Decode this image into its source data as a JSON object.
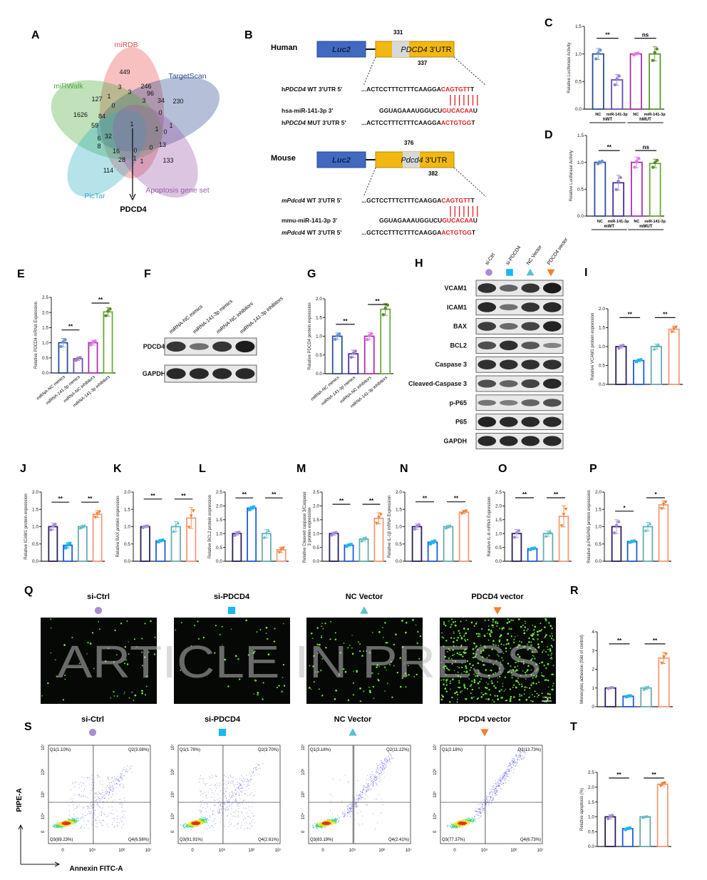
{
  "watermark": "ARTICLE IN PRESS",
  "panel_letters": [
    "A",
    "B",
    "C",
    "D",
    "E",
    "F",
    "G",
    "H",
    "I",
    "J",
    "K",
    "L",
    "M",
    "N",
    "O",
    "P",
    "Q",
    "R",
    "S",
    "T"
  ],
  "venn": {
    "sets": [
      {
        "name": "miRDB",
        "color": "#e84d4d"
      },
      {
        "name": "TargetScan",
        "color": "#2a4a8e"
      },
      {
        "name": "miRWalk",
        "color": "#4aaa3a"
      },
      {
        "name": "PicTar",
        "color": "#2fb0c4"
      },
      {
        "name": "Apoptosis gene set",
        "color": "#9a5aa8"
      }
    ],
    "counts": [
      "449",
      "3",
      "3",
      "246",
      "96",
      "127",
      "1",
      "0",
      "3",
      "34",
      "230",
      "1626",
      "84",
      "0",
      "59",
      "1",
      "1",
      "1",
      "0",
      "6",
      "32",
      "8",
      "13",
      "16",
      "0",
      "0",
      "28",
      "1",
      "1",
      "133",
      "114"
    ],
    "result": "PDCD4"
  },
  "construct": {
    "luc": "Luc2",
    "human": {
      "species": "Human",
      "utr_italic": "PDCD4",
      "utr_rest": " 3'UTR",
      "pos_top": "331",
      "pos_bottom": "337",
      "rows": [
        {
          "pre": "h",
          "it": "PDCD4",
          "post": " WT 3'UTR 5'",
          "seq": "...ACTCCTTTCTTTCAAGGA",
          "red": "CAGTGTT",
          "end": "T"
        },
        {
          "pre": "hsa-miR-141-3p 3'",
          "it": "",
          "post": "",
          "seq": "GGUAGAAAUGGUCU",
          "red": "GUCACAA",
          "end": "U"
        },
        {
          "pre": "h",
          "it": "PDCD4",
          "post": " MUT 3'UTR 5'",
          "seq": "...ACTCCTTTCTTTCAAGGA",
          "red": "ACTGTGG",
          "end": "T"
        }
      ]
    },
    "mouse": {
      "species": "Mouse",
      "utr_italic": "Pdcd4",
      "utr_rest": " 3'UTR",
      "pos_top": "376",
      "pos_bottom": "382",
      "rows": [
        {
          "pre": "",
          "it": "mPdcd4",
          "post": " WT 3'UTR 5'",
          "seq": "...GCTCCTTTCTTTCAAGGA",
          "red": "CAGTGTT",
          "end": "T"
        },
        {
          "pre": "mmu-miR-141-3p 3'",
          "it": "",
          "post": "",
          "seq": "GGUAGAAAUGGUCU",
          "red": "GUCACAA",
          "end": "U"
        },
        {
          "pre": "",
          "it": "mPdcd4",
          "post": " WT 3'UTR 5'",
          "seq": "...GCTCCTTTCTTTCAAGGA",
          "red": "ACTGTGG",
          "end": "T"
        }
      ]
    }
  },
  "blot_f": {
    "lanes": [
      "miRNA-NC mimics",
      "miRNA-141-3p mimics",
      "miRNA-NC inhibitors",
      "miRNA-141-3p inhibitors"
    ],
    "rows": [
      {
        "name": "PDCD4",
        "intensity": [
          0.8,
          0.35,
          0.8,
          1.0
        ]
      },
      {
        "name": "GAPDH",
        "intensity": [
          0.9,
          0.9,
          0.9,
          0.9
        ]
      }
    ]
  },
  "groups": [
    {
      "name": "si-Ctrl",
      "symbol": "circle",
      "color": "#a98bd6"
    },
    {
      "name": "si-PDCD4",
      "symbol": "square",
      "color": "#1ab8f0"
    },
    {
      "name": "NC Vector",
      "symbol": "triangle",
      "color": "#5cc0c8"
    },
    {
      "name": "PDCD4 vector",
      "symbol": "down-triangle",
      "color": "#f08030"
    }
  ],
  "blot_h": {
    "rows": [
      {
        "name": "VCAM1",
        "intensity": [
          0.85,
          0.45,
          0.8,
          1.0
        ]
      },
      {
        "name": "ICAM1",
        "intensity": [
          0.9,
          0.35,
          0.8,
          0.9
        ]
      },
      {
        "name": "BAX",
        "intensity": [
          0.75,
          0.4,
          0.7,
          0.95
        ]
      },
      {
        "name": "BCL2",
        "intensity": [
          0.6,
          0.85,
          0.55,
          0.2
        ]
      },
      {
        "name": "Caspase 3",
        "intensity": [
          0.85,
          0.85,
          0.85,
          0.85
        ]
      },
      {
        "name": "Cleaved-Caspase 3",
        "intensity": [
          0.6,
          0.45,
          0.7,
          0.9
        ]
      },
      {
        "name": "p-P65",
        "intensity": [
          0.3,
          0.25,
          0.45,
          0.6
        ]
      },
      {
        "name": "P65",
        "intensity": [
          0.95,
          0.9,
          0.9,
          0.9
        ]
      },
      {
        "name": "GAPDH",
        "intensity": [
          0.9,
          0.9,
          0.9,
          0.9
        ]
      }
    ]
  },
  "chart_data": [
    {
      "id": "C",
      "type": "bar",
      "ylabel": "Relative Luciferase Activity",
      "ylim": [
        0,
        1.5
      ],
      "yticks": [
        "0.0",
        "0.5",
        "1.0",
        "1.5"
      ],
      "categories": [
        "NC",
        "miR-141-3p",
        "NC",
        "miR-141-3p"
      ],
      "groups": [
        "hWT",
        "hMUT"
      ],
      "values": [
        1.0,
        0.53,
        1.0,
        1.0
      ],
      "errors": [
        0.1,
        0.1,
        0.02,
        0.13
      ],
      "sig": [
        "**",
        "ns"
      ],
      "colors": [
        "#2a4f9a",
        "#6a4fb0",
        "#b02fb0",
        "#5a9a2a"
      ],
      "point_colors": [
        "#6a8fd6",
        "#9a7fd0",
        "#e07ae0",
        "#5a8a2a"
      ]
    },
    {
      "id": "D",
      "type": "bar",
      "ylabel": "Relative Luciferase Activity",
      "ylim": [
        0,
        1.5
      ],
      "yticks": [
        "0.0",
        "0.5",
        "1.0",
        "1.5"
      ],
      "categories": [
        "NC",
        "miR-141-3p",
        "NC",
        "miR-141-3p"
      ],
      "groups": [
        "mWT",
        "mMUT"
      ],
      "values": [
        1.0,
        0.62,
        1.0,
        0.98
      ],
      "errors": [
        0.03,
        0.14,
        0.1,
        0.08
      ],
      "sig": [
        "**",
        "ns"
      ],
      "colors": [
        "#2a4f9a",
        "#4a2fa0",
        "#b02fb0",
        "#6aaa3a"
      ],
      "point_colors": [
        "#6a8fd6",
        "#9a7fd0",
        "#e07ae0",
        "#5a8a2a"
      ]
    },
    {
      "id": "E",
      "type": "bar",
      "ylabel": "Relative PDCD4 mRNA Expression",
      "ylim": [
        0,
        2.5
      ],
      "yticks": [
        "0.0",
        "0.5",
        "1.0",
        "1.5",
        "2.0",
        "2.5"
      ],
      "categories": [
        "miRNA-NC mimics",
        "miRNA-141-3p mimics",
        "miRNA-NC inhibitors",
        "miRNA-141-3p inhibitors"
      ],
      "values": [
        1.0,
        0.47,
        1.0,
        2.02
      ],
      "errors": [
        0.14,
        0.06,
        0.08,
        0.14
      ],
      "sig": [
        "**",
        "**"
      ],
      "colors": [
        "#2a4f9a",
        "#6a4fb0",
        "#b02fb0",
        "#6aaa3a"
      ],
      "point_colors": [
        "#6a8fd6",
        "#9a7fd0",
        "#e07ae0",
        "#5a8a2a"
      ]
    },
    {
      "id": "G",
      "type": "bar",
      "ylabel": "Relative PDCD4 protein expression",
      "ylim": [
        0,
        2.0
      ],
      "yticks": [
        "0.0",
        "0.5",
        "1.0",
        "1.5",
        "2.0"
      ],
      "categories": [
        "miRNA-NC mimics",
        "miRNA-141-3p mimics",
        "miRNA-NC inhibitors",
        "miRNA-141-3p inhibitors"
      ],
      "values": [
        1.0,
        0.53,
        1.0,
        1.72
      ],
      "errors": [
        0.09,
        0.1,
        0.1,
        0.16
      ],
      "sig": [
        "**",
        "**"
      ],
      "colors": [
        "#2a4f9a",
        "#4a2fa0",
        "#b02fb0",
        "#6aaa3a"
      ],
      "point_colors": [
        "#6a8fd6",
        "#9a7fd0",
        "#e07ae0",
        "#5a8a2a"
      ]
    },
    {
      "id": "I",
      "type": "bar",
      "ylabel": "Relative VCAM1 protein expression",
      "ylim": [
        0,
        2.0
      ],
      "yticks": [
        "0.0",
        "0.5",
        "1.0",
        "1.5",
        "2.0"
      ],
      "values": [
        1.0,
        0.63,
        1.0,
        1.46
      ],
      "errors": [
        0.05,
        0.03,
        0.07,
        0.08
      ],
      "sig": [
        "**",
        "**"
      ]
    },
    {
      "id": "J",
      "type": "bar",
      "ylabel": "Relative ICAM1 protein expression",
      "ylim": [
        0,
        2.0
      ],
      "yticks": [
        "0.0",
        "0.5",
        "1.0",
        "1.5",
        "2.0"
      ],
      "values": [
        1.0,
        0.46,
        1.0,
        1.36
      ],
      "errors": [
        0.1,
        0.08,
        0.04,
        0.1
      ],
      "sig": [
        "**",
        "**"
      ]
    },
    {
      "id": "K",
      "type": "bar",
      "ylabel": "Relative BAX protein expression",
      "ylim": [
        0,
        2.0
      ],
      "yticks": [
        "0.0",
        "0.5",
        "1.0",
        "1.5",
        "2.0"
      ],
      "values": [
        1.0,
        0.59,
        1.0,
        1.25
      ],
      "errors": [
        0.03,
        0.03,
        0.15,
        0.3
      ],
      "sig": [
        "**",
        "**"
      ]
    },
    {
      "id": "L",
      "type": "bar",
      "ylabel": "Relative BCL2 protein expression",
      "ylim": [
        0,
        2.5
      ],
      "yticks": [
        "0.0",
        "0.5",
        "1.0",
        "1.5",
        "2.0",
        "2.5"
      ],
      "values": [
        1.0,
        1.92,
        1.0,
        0.41
      ],
      "errors": [
        0.07,
        0.06,
        0.15,
        0.1
      ],
      "sig": [
        "**",
        "**"
      ]
    },
    {
      "id": "M",
      "type": "bar",
      "ylabel": "Relative Cleaved caspase 3/Caspase 3 protein expression",
      "ylim": [
        0,
        2.5
      ],
      "yticks": [
        "0.0",
        "0.5",
        "1.0",
        "1.5",
        "2.0",
        "2.5"
      ],
      "values": [
        1.0,
        0.58,
        0.8,
        1.55
      ],
      "errors": [
        0.06,
        0.04,
        0.07,
        0.2
      ],
      "sig": [
        "**",
        "**"
      ]
    },
    {
      "id": "N",
      "type": "bar",
      "ylabel": "Relative IL-1β mRNA Expression",
      "ylim": [
        0,
        2.0
      ],
      "yticks": [
        "0.0",
        "0.5",
        "1.0",
        "1.5",
        "2.0"
      ],
      "values": [
        1.0,
        0.55,
        1.0,
        1.42
      ],
      "errors": [
        0.08,
        0.05,
        0.04,
        0.05
      ],
      "sig": [
        "**",
        "**"
      ]
    },
    {
      "id": "O",
      "type": "bar",
      "ylabel": "Relative IL-6 mRNA Expression",
      "ylim": [
        0,
        2.5
      ],
      "yticks": [
        "0.0",
        "0.5",
        "1.0",
        "1.5",
        "2.0",
        "2.5"
      ],
      "values": [
        1.0,
        0.45,
        1.0,
        1.62
      ],
      "errors": [
        0.15,
        0.03,
        0.1,
        0.38
      ],
      "sig": [
        "**",
        "**"
      ]
    },
    {
      "id": "P",
      "type": "bar",
      "ylabel": "Relative p-P65/P65 protein expression",
      "ylim": [
        0,
        2.0
      ],
      "yticks": [
        "0.0",
        "0.5",
        "1.0",
        "1.5",
        "2.0"
      ],
      "values": [
        1.0,
        0.57,
        1.0,
        1.63
      ],
      "errors": [
        0.2,
        0.02,
        0.12,
        0.12
      ],
      "sig": [
        "*",
        "*"
      ]
    },
    {
      "id": "R",
      "type": "bar",
      "ylabel": "Monocytes adhesion (fold of control)",
      "ylim": [
        0,
        4
      ],
      "yticks": [
        "0",
        "1",
        "2",
        "3",
        "4"
      ],
      "values": [
        1.0,
        0.56,
        1.0,
        2.6
      ],
      "errors": [
        0.03,
        0.03,
        0.08,
        0.3
      ],
      "sig": [
        "**",
        "**"
      ]
    },
    {
      "id": "T",
      "type": "bar",
      "ylabel": "Relative apoptosis (%)",
      "ylim": [
        0,
        2.5
      ],
      "yticks": [
        "0.0",
        "0.5",
        "1.0",
        "1.5",
        "2.0",
        "2.5"
      ],
      "values": [
        1.0,
        0.6,
        1.0,
        2.1
      ],
      "errors": [
        0.07,
        0.03,
        0.02,
        0.06
      ],
      "sig": [
        "**",
        "**"
      ]
    }
  ],
  "group_bar_colors": [
    "#2b1f5a",
    "#1f5ae0",
    "#6aaab0",
    "#f59a7a"
  ],
  "adhesion_images": {
    "dot_counts": [
      60,
      45,
      110,
      520
    ],
    "scale_bar": "100μm"
  },
  "flow": {
    "xlabel": "Annexin FITC-A",
    "ylabel": "PIPE-A",
    "xticks": [
      "0",
      "10⁵",
      "10⁶",
      "10⁷"
    ],
    "yticks": [
      "0",
      "10⁴",
      "10⁵",
      "10⁶",
      "10⁷"
    ],
    "plots": [
      {
        "q1": "Q1(1.10%)",
        "q2": "Q2(3.08%)",
        "q3": "Q3(89.23%)",
        "q4": "Q4(6.58%)"
      },
      {
        "q1": "Q1(1.78%)",
        "q2": "Q2(3.70%)",
        "q3": "Q3(91.91%)",
        "q4": "Q4(2.61%)"
      },
      {
        "q1": "Q1(3.18%)",
        "q2": "Q2(11.22%)",
        "q3": "Q3(83.19%)",
        "q4": "Q4(2.41%)"
      },
      {
        "q1": "Q1(2.18%)",
        "q2": "Q2(13.73%)",
        "q3": "Q3(77.37%)",
        "q4": "Q4(6.73%)"
      }
    ]
  }
}
